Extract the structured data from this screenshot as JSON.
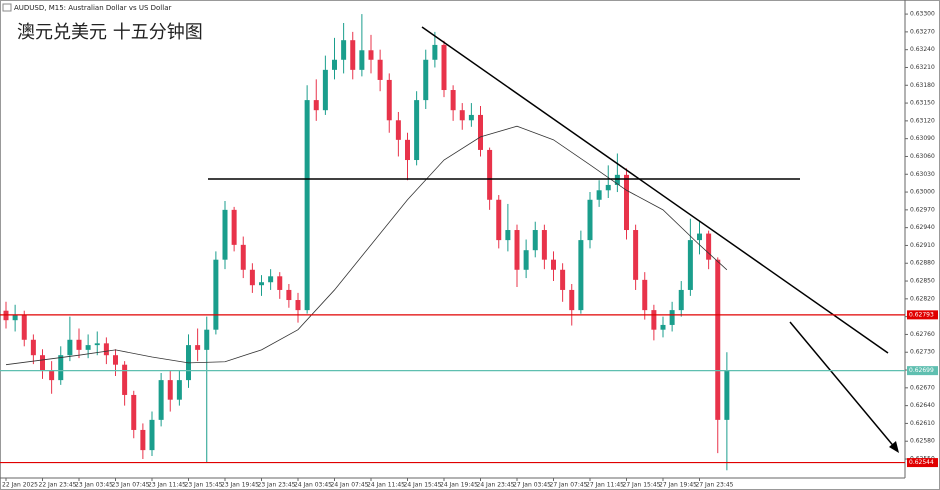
{
  "header": "AUDUSD, M15: Australian Dollar vs US Dollar",
  "chart_data": {
    "type": "candlestick",
    "title": "澳元兑美元 十五分钟图",
    "categories": [
      "22 Jan 2025",
      null,
      null,
      null,
      "22 Jan 23:45",
      null,
      null,
      null,
      "23 Jan 03:45",
      null,
      null,
      null,
      "23 Jan 07:45",
      null,
      null,
      null,
      "23 Jan 11:45",
      null,
      null,
      null,
      "23 Jan 15:45",
      null,
      null,
      null,
      "23 Jan 19:45",
      null,
      null,
      null,
      "23 Jan 23:45",
      null,
      null,
      null,
      "24 Jan 03:45",
      null,
      null,
      null,
      "24 Jan 07:45",
      null,
      null,
      null,
      "24 Jan 11:45",
      null,
      null,
      null,
      "24 Jan 15:45",
      null,
      null,
      null,
      "24 Jan 19:45",
      null,
      null,
      null,
      "24 Jan 23:45",
      null,
      null,
      null,
      "27 Jan 03:45",
      null,
      null,
      null,
      "27 Jan 07:45",
      null,
      null,
      null,
      "27 Jan 11:45",
      null,
      null,
      null,
      "27 Jan 15:45",
      null,
      null,
      null,
      "27 Jan 19:45",
      null,
      null,
      null,
      "27 Jan 23:45",
      null,
      null,
      null
    ],
    "open": [
      0.628,
      0.62784,
      0.62793,
      0.62751,
      0.62725,
      0.627,
      0.62683,
      0.62725,
      0.62751,
      0.62734,
      0.62742,
      0.62745,
      0.62725,
      0.62709,
      0.62658,
      0.62599,
      0.62565,
      0.62616,
      0.62683,
      0.6265,
      0.62683,
      0.62742,
      0.62734,
      0.62768,
      0.62886,
      0.6297,
      0.62911,
      0.62869,
      0.62843,
      0.62848,
      0.62858,
      0.62835,
      0.62818,
      0.62801,
      0.63155,
      0.63138,
      0.63206,
      0.63223,
      0.63256,
      0.63206,
      0.63239,
      0.63223,
      0.63189,
      0.63121,
      0.63088,
      0.63054,
      0.63155,
      0.63223,
      0.63248,
      0.63172,
      0.63138,
      0.63121,
      0.6313,
      0.63071,
      0.62987,
      0.62919,
      0.62936,
      0.62869,
      0.62902,
      0.62936,
      0.62886,
      0.62869,
      0.62835,
      0.62801,
      0.62919,
      0.62987,
      0.63003,
      0.63012,
      0.63029,
      0.62936,
      0.62852,
      0.62801,
      0.62768,
      0.62776,
      0.62801,
      0.62835,
      0.62919,
      0.6293,
      0.62886,
      0.62616
    ],
    "high": [
      0.62815,
      0.6281,
      0.628,
      0.6276,
      0.62735,
      0.62715,
      0.6274,
      0.6279,
      0.6277,
      0.6276,
      0.62765,
      0.62755,
      0.62735,
      0.62715,
      0.62665,
      0.6261,
      0.6263,
      0.62695,
      0.627,
      0.627,
      0.6276,
      0.6277,
      0.6279,
      0.629,
      0.62985,
      0.62975,
      0.62925,
      0.6288,
      0.6286,
      0.6287,
      0.62865,
      0.62845,
      0.6283,
      0.6318,
      0.6319,
      0.6323,
      0.6326,
      0.63285,
      0.6327,
      0.633,
      0.63265,
      0.6324,
      0.632,
      0.63135,
      0.631,
      0.6317,
      0.6324,
      0.6327,
      0.63255,
      0.6318,
      0.6315,
      0.6315,
      0.63145,
      0.63075,
      0.62995,
      0.6298,
      0.62945,
      0.6292,
      0.6295,
      0.62945,
      0.629,
      0.6288,
      0.62845,
      0.62935,
      0.63,
      0.6302,
      0.63045,
      0.63065,
      0.6304,
      0.62945,
      0.62865,
      0.6281,
      0.6279,
      0.62815,
      0.6285,
      0.62955,
      0.6295,
      0.62935,
      0.6289,
      0.6273
    ],
    "low": [
      0.6277,
      0.62765,
      0.6274,
      0.6271,
      0.62685,
      0.6266,
      0.62675,
      0.62715,
      0.6272,
      0.6272,
      0.62725,
      0.6271,
      0.6269,
      0.6264,
      0.62585,
      0.6255,
      0.62555,
      0.62605,
      0.6263,
      0.6264,
      0.6267,
      0.62715,
      0.62545,
      0.6276,
      0.6287,
      0.629,
      0.62855,
      0.6283,
      0.62825,
      0.62835,
      0.6282,
      0.62805,
      0.6278,
      0.62795,
      0.6312,
      0.6313,
      0.6319,
      0.632,
      0.6319,
      0.63195,
      0.632,
      0.6317,
      0.631,
      0.6306,
      0.6302,
      0.63045,
      0.6314,
      0.6321,
      0.6316,
      0.6312,
      0.63105,
      0.6311,
      0.6306,
      0.6297,
      0.62905,
      0.629,
      0.6284,
      0.62855,
      0.6289,
      0.6287,
      0.6285,
      0.62815,
      0.62775,
      0.62795,
      0.62905,
      0.62975,
      0.6299,
      0.63,
      0.6292,
      0.62835,
      0.62785,
      0.6275,
      0.62755,
      0.62765,
      0.6279,
      0.62825,
      0.62895,
      0.6287,
      0.6256,
      0.62531
    ],
    "close": [
      0.62784,
      0.62793,
      0.62751,
      0.62725,
      0.627,
      0.62683,
      0.62725,
      0.62751,
      0.62734,
      0.62742,
      0.62745,
      0.62725,
      0.62709,
      0.62658,
      0.62599,
      0.62565,
      0.62616,
      0.62683,
      0.6265,
      0.62683,
      0.62742,
      0.62734,
      0.62768,
      0.62886,
      0.6297,
      0.62911,
      0.62869,
      0.62843,
      0.62848,
      0.62858,
      0.62835,
      0.62818,
      0.62801,
      0.63155,
      0.63138,
      0.63206,
      0.63223,
      0.63256,
      0.63206,
      0.63239,
      0.63223,
      0.63189,
      0.63121,
      0.63088,
      0.63054,
      0.63155,
      0.63223,
      0.63248,
      0.63172,
      0.63138,
      0.63121,
      0.6313,
      0.63071,
      0.62987,
      0.62919,
      0.62936,
      0.62869,
      0.62902,
      0.62936,
      0.62886,
      0.62869,
      0.62835,
      0.62801,
      0.62919,
      0.62987,
      0.63003,
      0.63012,
      0.63029,
      0.62936,
      0.62852,
      0.62801,
      0.62768,
      0.62776,
      0.62801,
      0.62835,
      0.62919,
      0.6293,
      0.62886,
      0.62616,
      0.62699
    ],
    "ma_index": [
      0,
      4,
      8,
      12,
      16,
      20,
      24,
      28,
      32,
      36,
      40,
      44,
      48,
      52,
      56,
      60,
      64,
      68,
      72,
      76,
      79
    ],
    "ma_values": [
      0.62709,
      0.62717,
      0.62725,
      0.62734,
      0.62722,
      0.62712,
      0.62714,
      0.62734,
      0.62768,
      0.62835,
      0.62911,
      0.62987,
      0.63054,
      0.63093,
      0.63111,
      0.63088,
      0.63046,
      0.63003,
      0.6297,
      0.62911,
      0.62869
    ],
    "up_color": "#1a9e8c",
    "down_color": "#e8334a",
    "ma_color": "#333333",
    "ylim": [
      0.62518,
      0.63317
    ],
    "yticks": [
      {
        "value": 0.633,
        "label": "0.63300"
      },
      {
        "value": 0.6327,
        "label": "0.63270"
      },
      {
        "value": 0.6324,
        "label": "0.63240"
      },
      {
        "value": 0.6321,
        "label": "0.63210"
      },
      {
        "value": 0.6318,
        "label": "0.63180"
      },
      {
        "value": 0.6315,
        "label": "0.63150"
      },
      {
        "value": 0.6312,
        "label": "0.63120"
      },
      {
        "value": 0.6309,
        "label": "0.63090"
      },
      {
        "value": 0.6306,
        "label": "0.63060"
      },
      {
        "value": 0.6303,
        "label": "0.63030"
      },
      {
        "value": 0.63,
        "label": "0.63000"
      },
      {
        "value": 0.6297,
        "label": "0.62970"
      },
      {
        "value": 0.6294,
        "label": "0.62940"
      },
      {
        "value": 0.6291,
        "label": "0.62910"
      },
      {
        "value": 0.6288,
        "label": "0.62880"
      },
      {
        "value": 0.6285,
        "label": "0.62850"
      },
      {
        "value": 0.6282,
        "label": "0.62820"
      },
      {
        "value": 0.6279,
        "label": "0.62790"
      },
      {
        "value": 0.6276,
        "label": "0.62760"
      },
      {
        "value": 0.6273,
        "label": "0.62730"
      },
      {
        "value": 0.627,
        "label": "0.62700"
      },
      {
        "value": 0.6267,
        "label": "0.62670"
      },
      {
        "value": 0.6264,
        "label": "0.62640"
      },
      {
        "value": 0.6261,
        "label": "0.62610"
      },
      {
        "value": 0.6258,
        "label": "0.62580"
      },
      {
        "value": 0.6255,
        "label": "0.62550"
      }
    ],
    "levels": [
      {
        "value": 0.62793,
        "label": "0.62793",
        "color": "#e00000"
      },
      {
        "value": 0.62699,
        "label": "0.62699",
        "color": "#5fbfb0"
      },
      {
        "value": 0.62544,
        "label": "0.62544",
        "color": "#e00000"
      }
    ]
  }
}
